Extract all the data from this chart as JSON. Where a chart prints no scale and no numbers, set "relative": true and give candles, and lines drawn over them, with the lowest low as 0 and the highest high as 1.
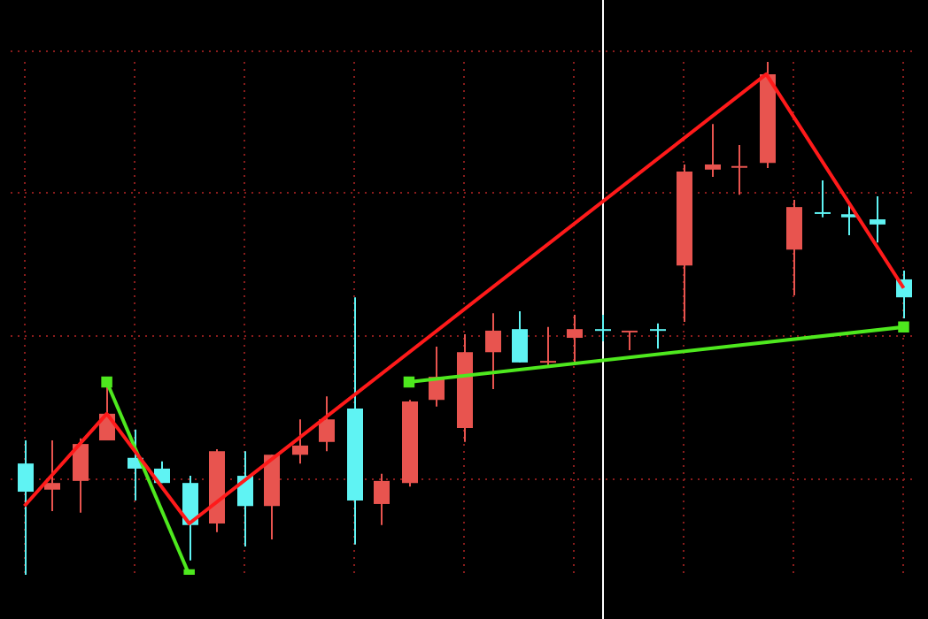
{
  "chart_data": {
    "type": "candlestick",
    "relative": true,
    "grid": true,
    "legend": false,
    "categories": [
      null,
      null,
      null,
      null,
      null,
      null,
      null,
      null,
      null,
      null,
      null,
      null,
      null,
      null,
      null,
      null,
      null,
      null,
      null,
      null,
      null,
      null,
      null,
      null,
      null,
      null,
      null,
      null,
      null,
      null,
      null,
      null,
      null
    ],
    "ohlc": [
      [
        0.217,
        0.262,
        0,
        0.162
      ],
      [
        0.166,
        0.262,
        0.124,
        0.179
      ],
      [
        0.183,
        0.266,
        0.121,
        0.255
      ],
      [
        0.262,
        0.372,
        0.262,
        0.314
      ],
      [
        0.228,
        0.283,
        0.145,
        0.207
      ],
      [
        0.207,
        0.221,
        0.179,
        0.179
      ],
      [
        0.179,
        0.193,
        0.028,
        0.097
      ],
      [
        0.1,
        0.245,
        0.083,
        0.241
      ],
      [
        0.193,
        0.241,
        0.055,
        0.134
      ],
      [
        0.134,
        0.234,
        0.069,
        0.234
      ],
      [
        0.234,
        0.303,
        0.217,
        0.252
      ],
      [
        0.259,
        0.348,
        0.241,
        0.303
      ],
      [
        0.324,
        0.541,
        0.059,
        0.145
      ],
      [
        0.138,
        0.197,
        0.097,
        0.183
      ],
      [
        0.179,
        0.341,
        0.172,
        0.338
      ],
      [
        0.341,
        0.445,
        0.328,
        0.386
      ],
      [
        0.286,
        0.469,
        0.259,
        0.434
      ],
      [
        0.434,
        0.51,
        0.362,
        0.476
      ],
      [
        0.479,
        0.514,
        0.414,
        0.414
      ],
      [
        0.414,
        0.483,
        0.407,
        0.417
      ],
      [
        0.462,
        0.507,
        0.414,
        0.479
      ],
      [
        0.479,
        0.507,
        0.455,
        0.479
      ],
      [
        0.476,
        0.476,
        0.438,
        0.476
      ],
      [
        0.479,
        0.49,
        0.441,
        0.479
      ],
      [
        0.603,
        0.8,
        0.493,
        0.786
      ],
      [
        0.79,
        0.879,
        0.776,
        0.8
      ],
      [
        0.797,
        0.838,
        0.741,
        0.797
      ],
      [
        0.803,
        1,
        0.793,
        0.976
      ],
      [
        0.634,
        0.731,
        0.545,
        0.717
      ],
      [
        0.707,
        0.769,
        0.697,
        0.707
      ],
      [
        0.703,
        0.724,
        0.662,
        0.697
      ],
      [
        0.693,
        0.738,
        0.648,
        0.683
      ],
      [
        0.576,
        0.593,
        0.5,
        0.541
      ]
    ],
    "colors": [
      "#5ff3f3",
      "#e8544f",
      "#e8544f",
      "#e8544f",
      "#5ff3f3",
      "#5ff3f3",
      "#5ff3f3",
      "#e8544f",
      "#5ff3f3",
      "#e8544f",
      "#e8544f",
      "#e8544f",
      "#5ff3f3",
      "#e8544f",
      "#e8544f",
      "#e8544f",
      "#e8544f",
      "#e8544f",
      "#5ff3f3",
      "#e8544f",
      "#e8544f",
      "#5ff3f3",
      "#e8544f",
      "#5ff3f3",
      "#e8544f",
      "#e8544f",
      "#e8544f",
      "#e8544f",
      "#e8544f",
      "#5ff3f3",
      "#5ff3f3",
      "#5ff3f3",
      "#5ff3f3"
    ],
    "series": [
      {
        "type": "line",
        "color": "#ff1a1a",
        "marker": "none",
        "values": [
          0.134,
          null,
          null,
          0.314,
          null,
          null,
          0.1,
          null,
          null,
          null,
          null,
          null,
          null,
          null,
          null,
          null,
          null,
          null,
          null,
          null,
          null,
          null,
          null,
          null,
          null,
          null,
          null,
          0.976,
          null,
          null,
          null,
          null,
          0.559
        ]
      },
      {
        "type": "line",
        "color": "#4ee81e",
        "marker": "square",
        "values": [
          null,
          null,
          null,
          0.376,
          null,
          null,
          0,
          null,
          null,
          null,
          null,
          null,
          null,
          null,
          null,
          null,
          null,
          null,
          null,
          null,
          null,
          null,
          null,
          null,
          null,
          null,
          null,
          null,
          null,
          null,
          null,
          null,
          null
        ]
      },
      {
        "type": "line",
        "color": "#4ee81e",
        "marker": "square",
        "values": [
          null,
          null,
          null,
          null,
          null,
          null,
          null,
          null,
          null,
          null,
          null,
          null,
          null,
          null,
          0.376,
          null,
          null,
          null,
          null,
          null,
          null,
          null,
          null,
          null,
          null,
          null,
          null,
          null,
          null,
          null,
          null,
          null,
          0.483
        ]
      }
    ]
  }
}
